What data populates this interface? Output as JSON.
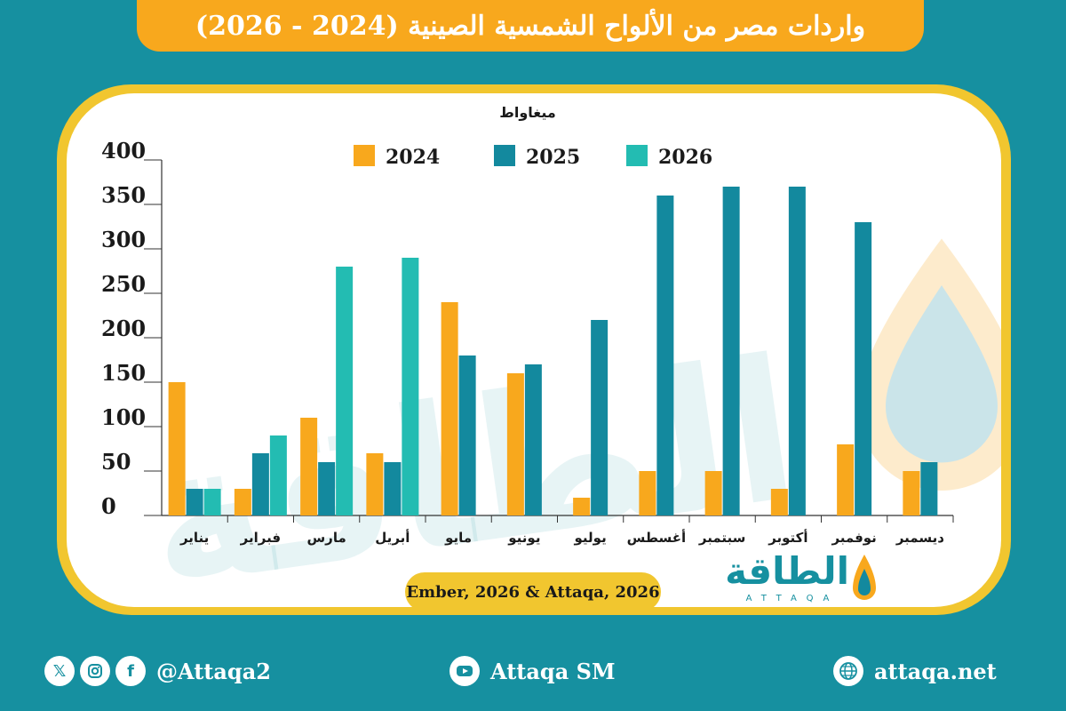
{
  "title": "واردات مصر من الألواح الشمسية الصينية (2024 - 2026)",
  "source": "Ember, 2026 & Attaqa, 2026",
  "logo": {
    "name": "الطاقة",
    "subtitle": "ATTAQA"
  },
  "footer": {
    "social_handle": "@Attaqa2",
    "youtube": "Attaqa SM",
    "website": "attaqa.net"
  },
  "icons": {
    "x": "x-logo-icon",
    "instagram": "instagram-icon",
    "facebook": "facebook-icon",
    "youtube": "youtube-icon",
    "globe": "globe-icon"
  },
  "colors": {
    "background": "#1690a0",
    "accent": "#f8a81d",
    "frame": "#f1c62f",
    "series_2024": "#f8a81d",
    "series_2025": "#13899e",
    "series_2026": "#23bcb2"
  },
  "chart_data": {
    "type": "bar",
    "unit_label": "ميغاواط",
    "categories": [
      "يناير",
      "فبراير",
      "مارس",
      "أبريل",
      "مايو",
      "يونيو",
      "يوليو",
      "أغسطس",
      "سبتمبر",
      "أكتوبر",
      "نوفمبر",
      "ديسمبر"
    ],
    "series": [
      {
        "name": "2024",
        "color": "#f8a81d",
        "values": [
          150,
          30,
          110,
          70,
          240,
          160,
          20,
          50,
          50,
          30,
          80,
          50
        ]
      },
      {
        "name": "2025",
        "color": "#13899e",
        "values": [
          30,
          70,
          60,
          60,
          180,
          170,
          220,
          360,
          370,
          370,
          330,
          60
        ]
      },
      {
        "name": "2026",
        "color": "#23bcb2",
        "values": [
          30,
          90,
          280,
          290,
          null,
          null,
          null,
          null,
          null,
          null,
          null,
          null
        ]
      }
    ],
    "ylim": [
      0,
      400
    ],
    "yticks": [
      0,
      50,
      100,
      150,
      200,
      250,
      300,
      350,
      400
    ],
    "grid": false,
    "legend_position": "top"
  }
}
